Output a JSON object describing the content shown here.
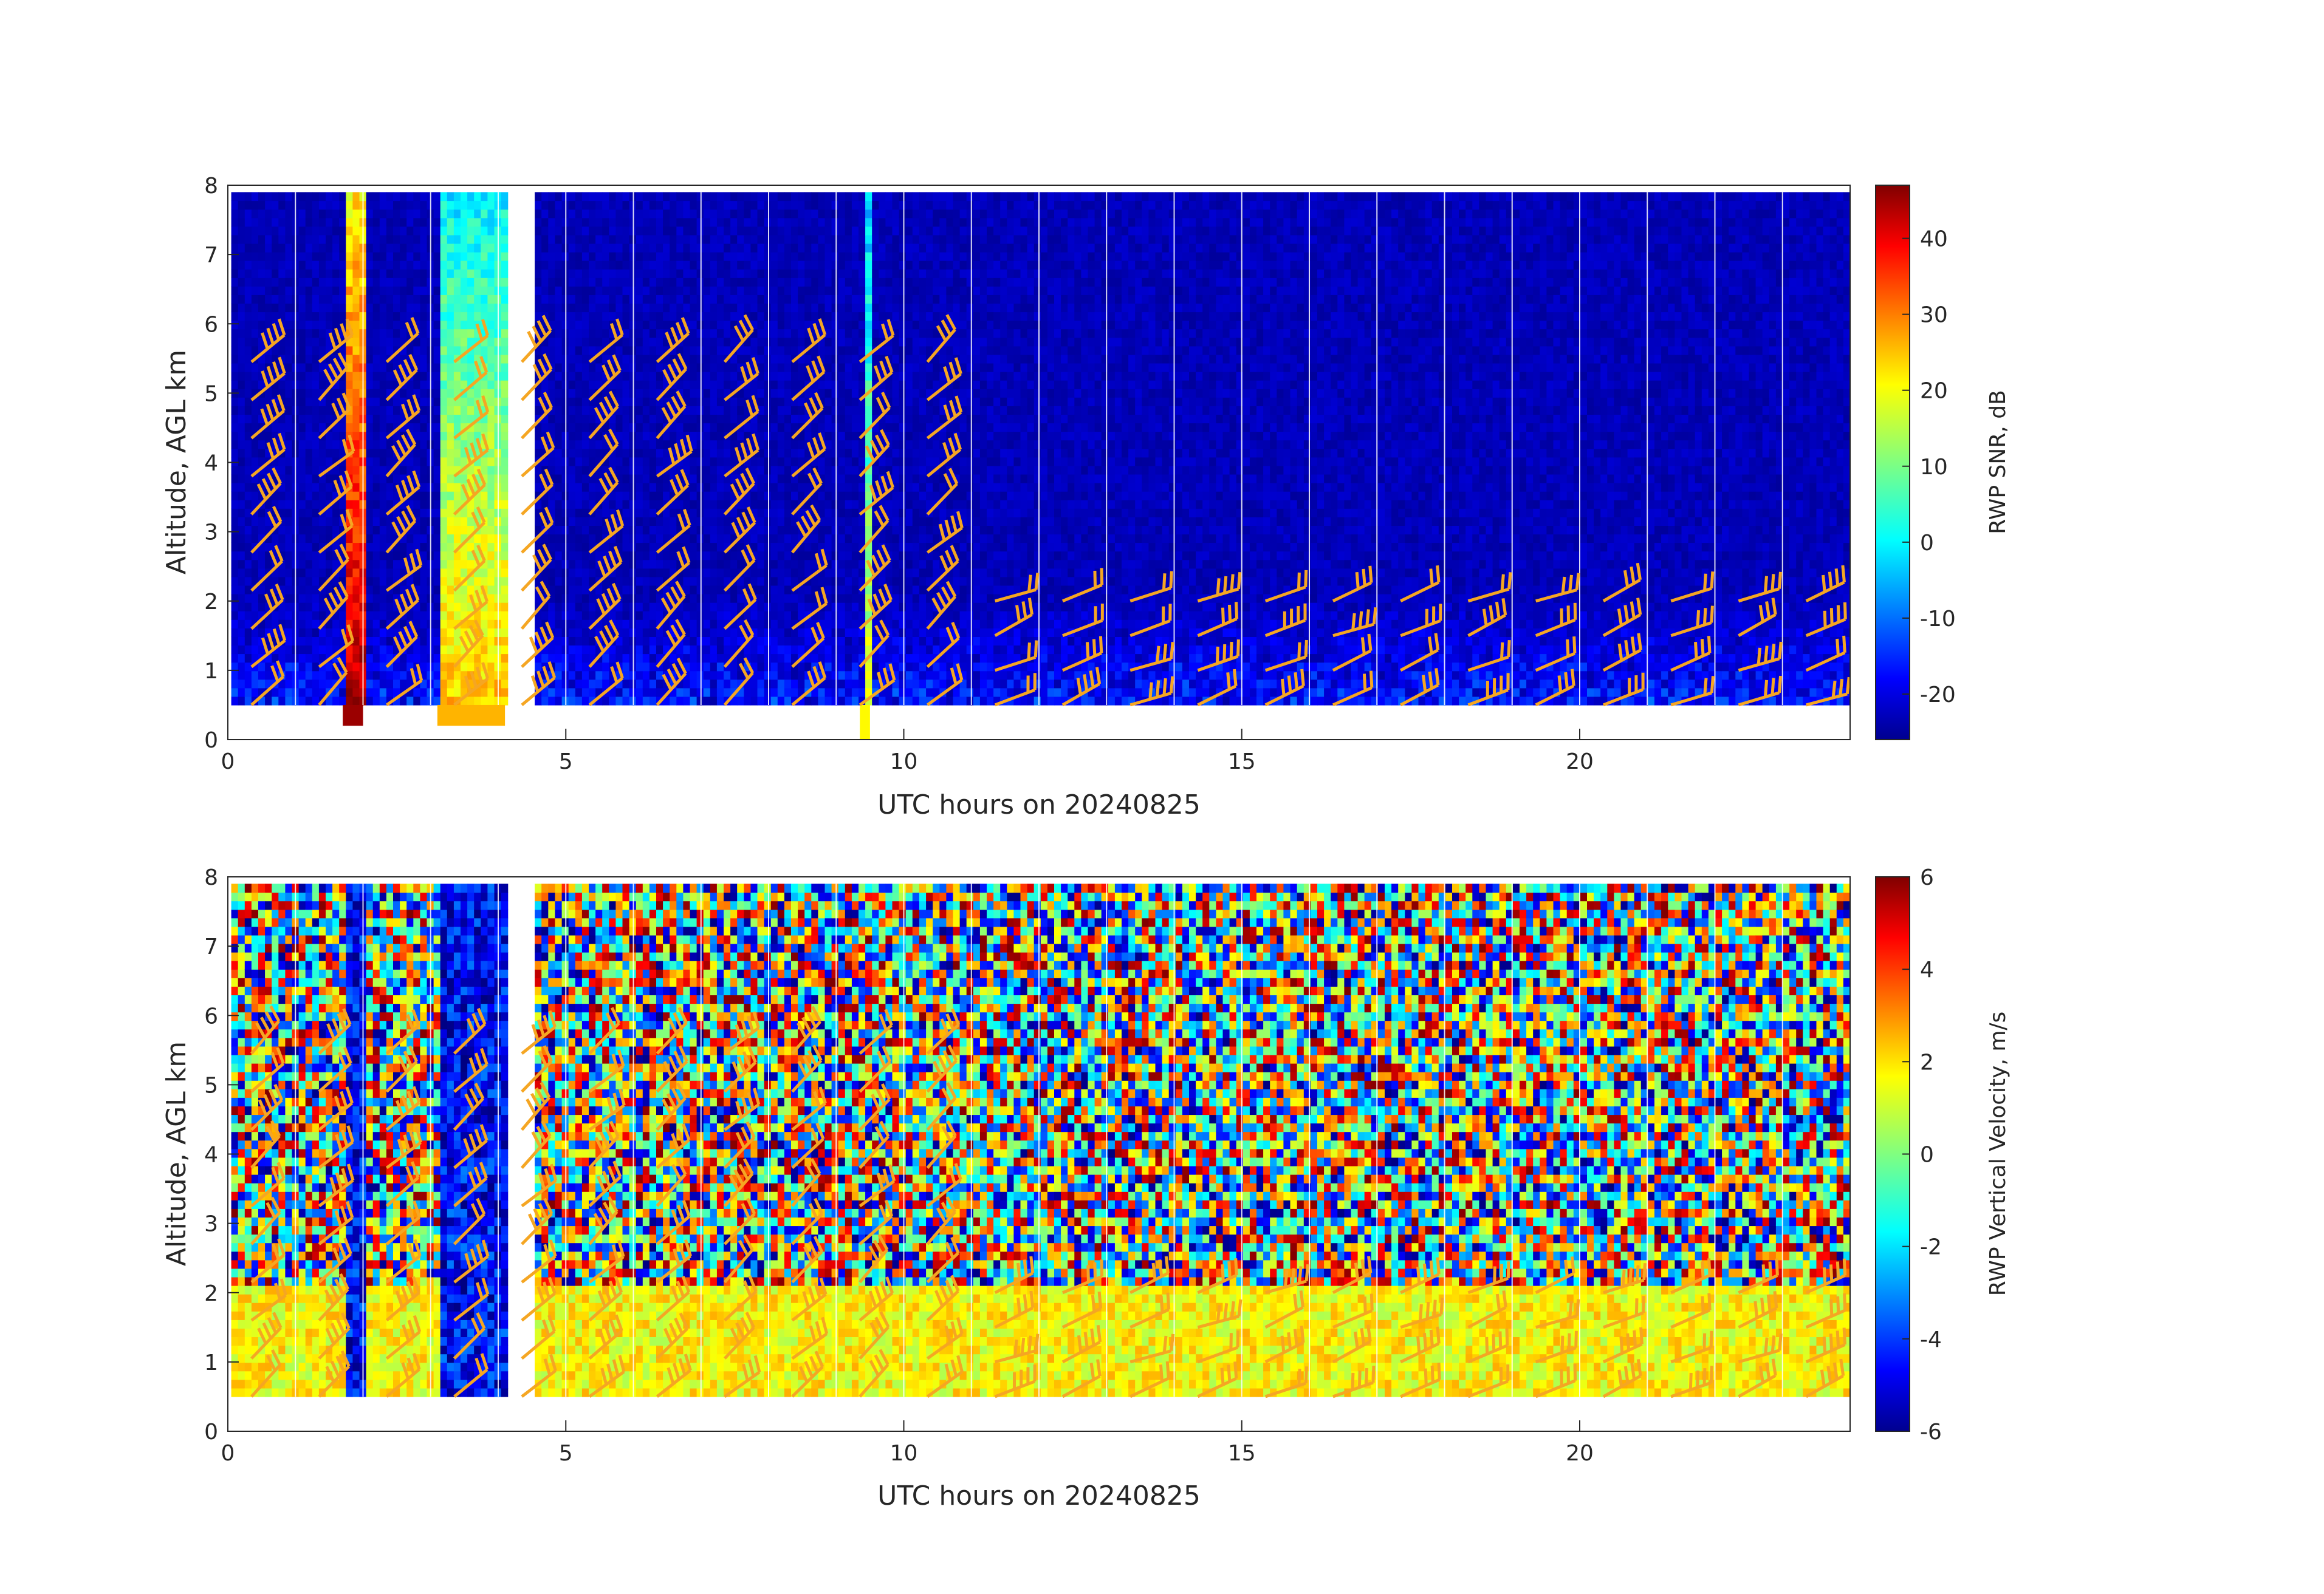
{
  "chart_data": [
    {
      "type": "heatmap",
      "xlabel": "UTC hours on 20240825",
      "ylabel": "Altitude, AGL km",
      "xlim": [
        0,
        24
      ],
      "ylim": [
        0,
        8
      ],
      "x_ticks": [
        "0",
        "5",
        "10",
        "15",
        "20"
      ],
      "y_ticks": [
        "0",
        "1",
        "2",
        "3",
        "4",
        "5",
        "6",
        "7",
        "8"
      ],
      "colorbar": {
        "label": "RWP SNR, dB",
        "range": [
          -26,
          47
        ],
        "ticks": [
          "-20",
          "-10",
          "0",
          "10",
          "20",
          "30",
          "40"
        ],
        "colormap": "jet"
      },
      "background_value": -22,
      "data_coverage": {
        "x_start": 0.05,
        "x_end": 24.0,
        "y_start": 0.5,
        "y_end": 7.9
      },
      "data_gaps_hours": [
        [
          4.1,
          4.45
        ]
      ],
      "strong_echo_columns": [
        {
          "x_start": 1.7,
          "x_end": 2.0,
          "y_bottom": 0.2,
          "value": 45
        },
        {
          "x_start": 3.1,
          "x_end": 4.1,
          "y_bottom": 0.2,
          "value": 25
        },
        {
          "x_start": 9.35,
          "x_end": 9.5,
          "y_bottom": 0.0,
          "value": 20
        }
      ],
      "wind_barbs": "orange wind barbs overlaid at hourly intervals, altitudes 0.5–6 km"
    },
    {
      "type": "heatmap",
      "xlabel": "UTC hours on 20240825",
      "ylabel": "Altitude, AGL km",
      "xlim": [
        0,
        24
      ],
      "ylim": [
        0,
        8
      ],
      "x_ticks": [
        "0",
        "5",
        "10",
        "15",
        "20"
      ],
      "y_ticks": [
        "0",
        "1",
        "2",
        "3",
        "4",
        "5",
        "6",
        "7",
        "8"
      ],
      "colorbar": {
        "label": "RWP Vertical Velocity, m/s",
        "range": [
          -6,
          6
        ],
        "ticks": [
          "-6",
          "-4",
          "-2",
          "0",
          "2",
          "4",
          "6"
        ],
        "colormap": "jet"
      },
      "data_coverage": {
        "x_start": 0.05,
        "x_end": 24.0,
        "y_start": 0.5,
        "y_end": 7.9
      },
      "data_gaps_hours": [
        [
          4.1,
          4.45
        ]
      ],
      "boundary_layer_top_km": 2.0,
      "wind_barbs": "orange wind barbs overlaid at hourly intervals, altitudes 0.5–6 km"
    }
  ],
  "colors": {
    "barb": "#f5a623",
    "axis": "#262626",
    "separator": "#ffffff"
  }
}
